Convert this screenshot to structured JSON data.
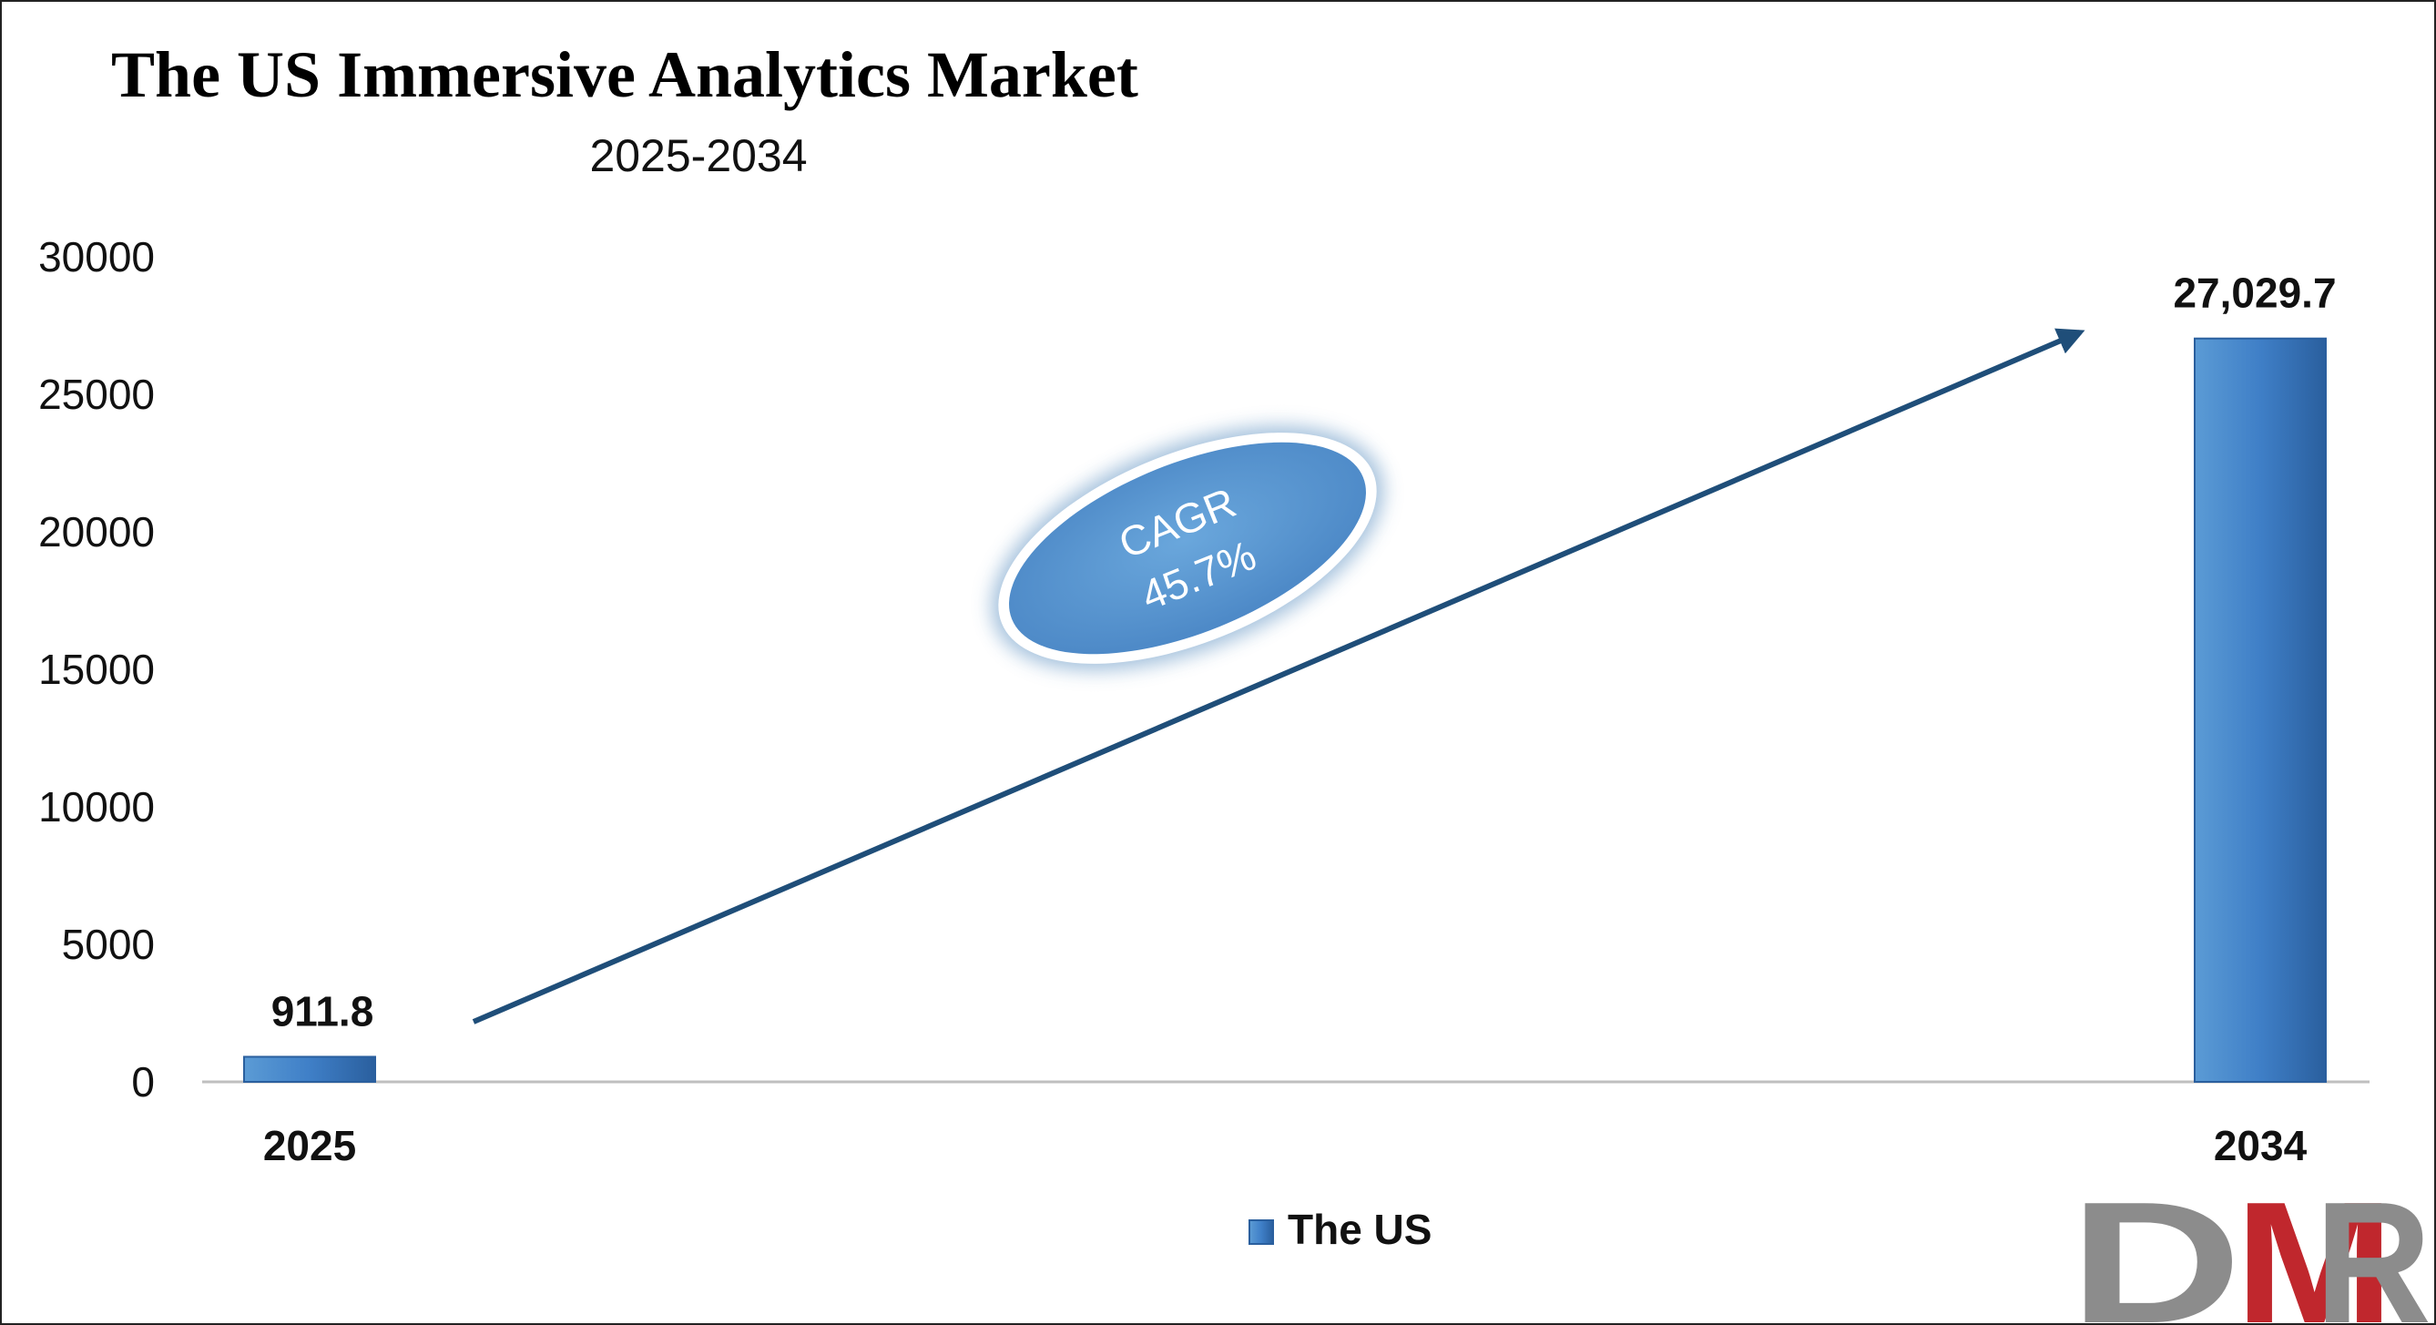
{
  "chart_data": {
    "type": "bar",
    "title": "The US Immersive Analytics Market",
    "subtitle": "2025-2034",
    "categories": [
      "2025",
      "2034"
    ],
    "series": [
      {
        "name": "The US",
        "values": [
          911.8,
          27029.7
        ],
        "color": "#3b7bc4"
      }
    ],
    "data_labels": [
      "911.8",
      "27,029.7"
    ],
    "yticks": [
      "0",
      "5000",
      "10000",
      "15000",
      "20000",
      "25000",
      "30000"
    ],
    "ylim": [
      0,
      30000
    ],
    "grid": false,
    "legend": "bottom-center",
    "annotation": {
      "label": "CAGR",
      "value": "45.7%"
    }
  },
  "logo": {
    "text": "DMR",
    "colors": [
      "#8c8c8c",
      "#c0272d"
    ]
  },
  "colors": {
    "bar": "#3b7bc4",
    "arrow": "#1f4e79",
    "ellipse": "#5b9bd5"
  }
}
